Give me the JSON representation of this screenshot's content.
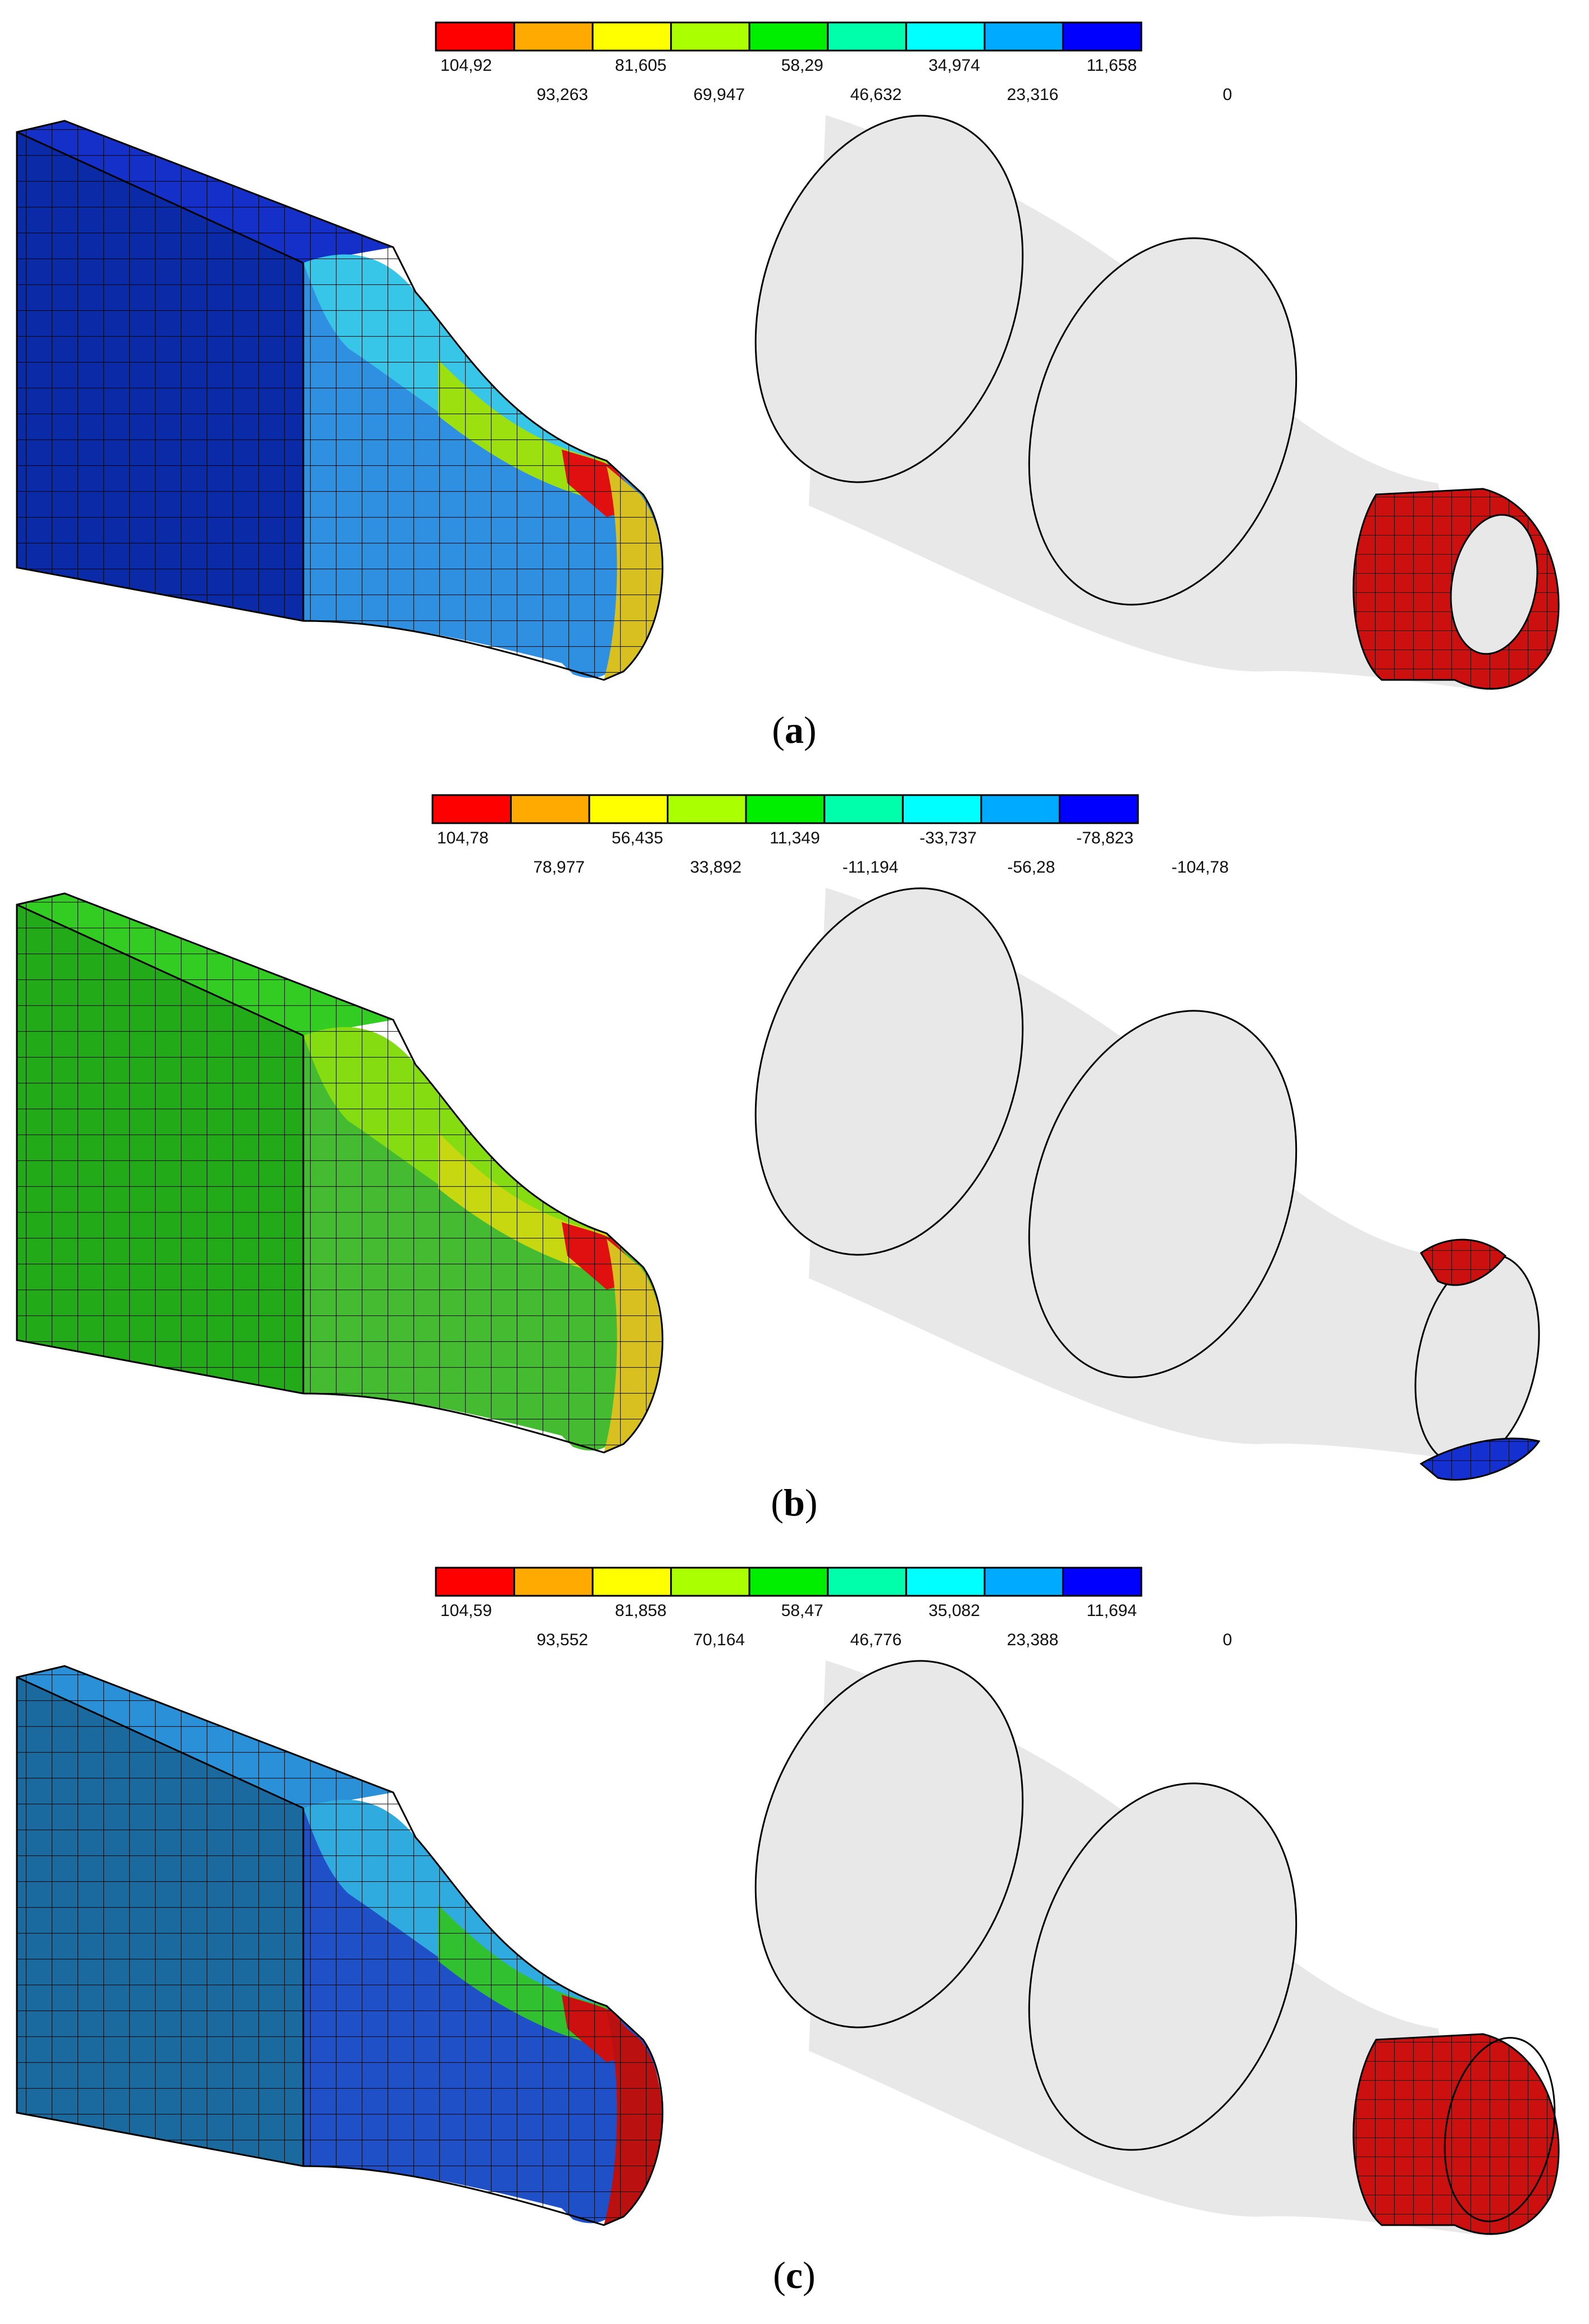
{
  "panels": [
    {
      "caption_letter": "a",
      "legend": {
        "colors": [
          "#ff0000",
          "#ffaa00",
          "#ffff00",
          "#aaff00",
          "#00ee00",
          "#00ffaa",
          "#00ffff",
          "#00aaff",
          "#0000ff"
        ],
        "upper_labels": [
          "104,92",
          "81,605",
          "58,29",
          "34,974",
          "11,658"
        ],
        "lower_labels": [
          "93,263",
          "69,947",
          "46,632",
          "23,316",
          "0"
        ]
      },
      "model_colors": {
        "top": "#1530c8",
        "front": "#0a2aa8",
        "fillet": "#2f8fe0",
        "neck_top": "#38c8e8",
        "neck_mid": "#9de010",
        "neck_hot": "#e01010",
        "end": "#d8c020",
        "ring": "#cc1010"
      }
    },
    {
      "caption_letter": "b",
      "legend": {
        "colors": [
          "#ff0000",
          "#ffaa00",
          "#ffff00",
          "#aaff00",
          "#00ee00",
          "#00ffaa",
          "#00ffff",
          "#00aaff",
          "#0000ff"
        ],
        "upper_labels": [
          "104,78",
          "56,435",
          "11,349",
          "-33,737",
          "-78,823"
        ],
        "lower_labels": [
          "78,977",
          "33,892",
          "-11,194",
          "-56,28",
          "-104,78"
        ]
      },
      "model_colors": {
        "top": "#33cc22",
        "front": "#22aa18",
        "fillet": "#44bb30",
        "neck_top": "#88dd10",
        "neck_mid": "#c8d810",
        "neck_hot": "#e01010",
        "end": "#d8c020",
        "ring_top": "#cc1010",
        "ring_bottom": "#1530d0"
      }
    },
    {
      "caption_letter": "c",
      "legend": {
        "colors": [
          "#ff0000",
          "#ffaa00",
          "#ffff00",
          "#aaff00",
          "#00ee00",
          "#00ffaa",
          "#00ffff",
          "#00aaff",
          "#0000ff"
        ],
        "upper_labels": [
          "104,59",
          "81,858",
          "58,47",
          "35,082",
          "11,694"
        ],
        "lower_labels": [
          "93,552",
          "70,164",
          "46,776",
          "23,388",
          "0"
        ]
      },
      "model_colors": {
        "top": "#2a90d8",
        "front": "#1a6aa0",
        "fillet": "#2050c8",
        "neck_top": "#30b0e0",
        "neck_mid": "#30c030",
        "neck_hot": "#cc1010",
        "end": "#bb1010",
        "ring": "#cc1010"
      }
    }
  ]
}
